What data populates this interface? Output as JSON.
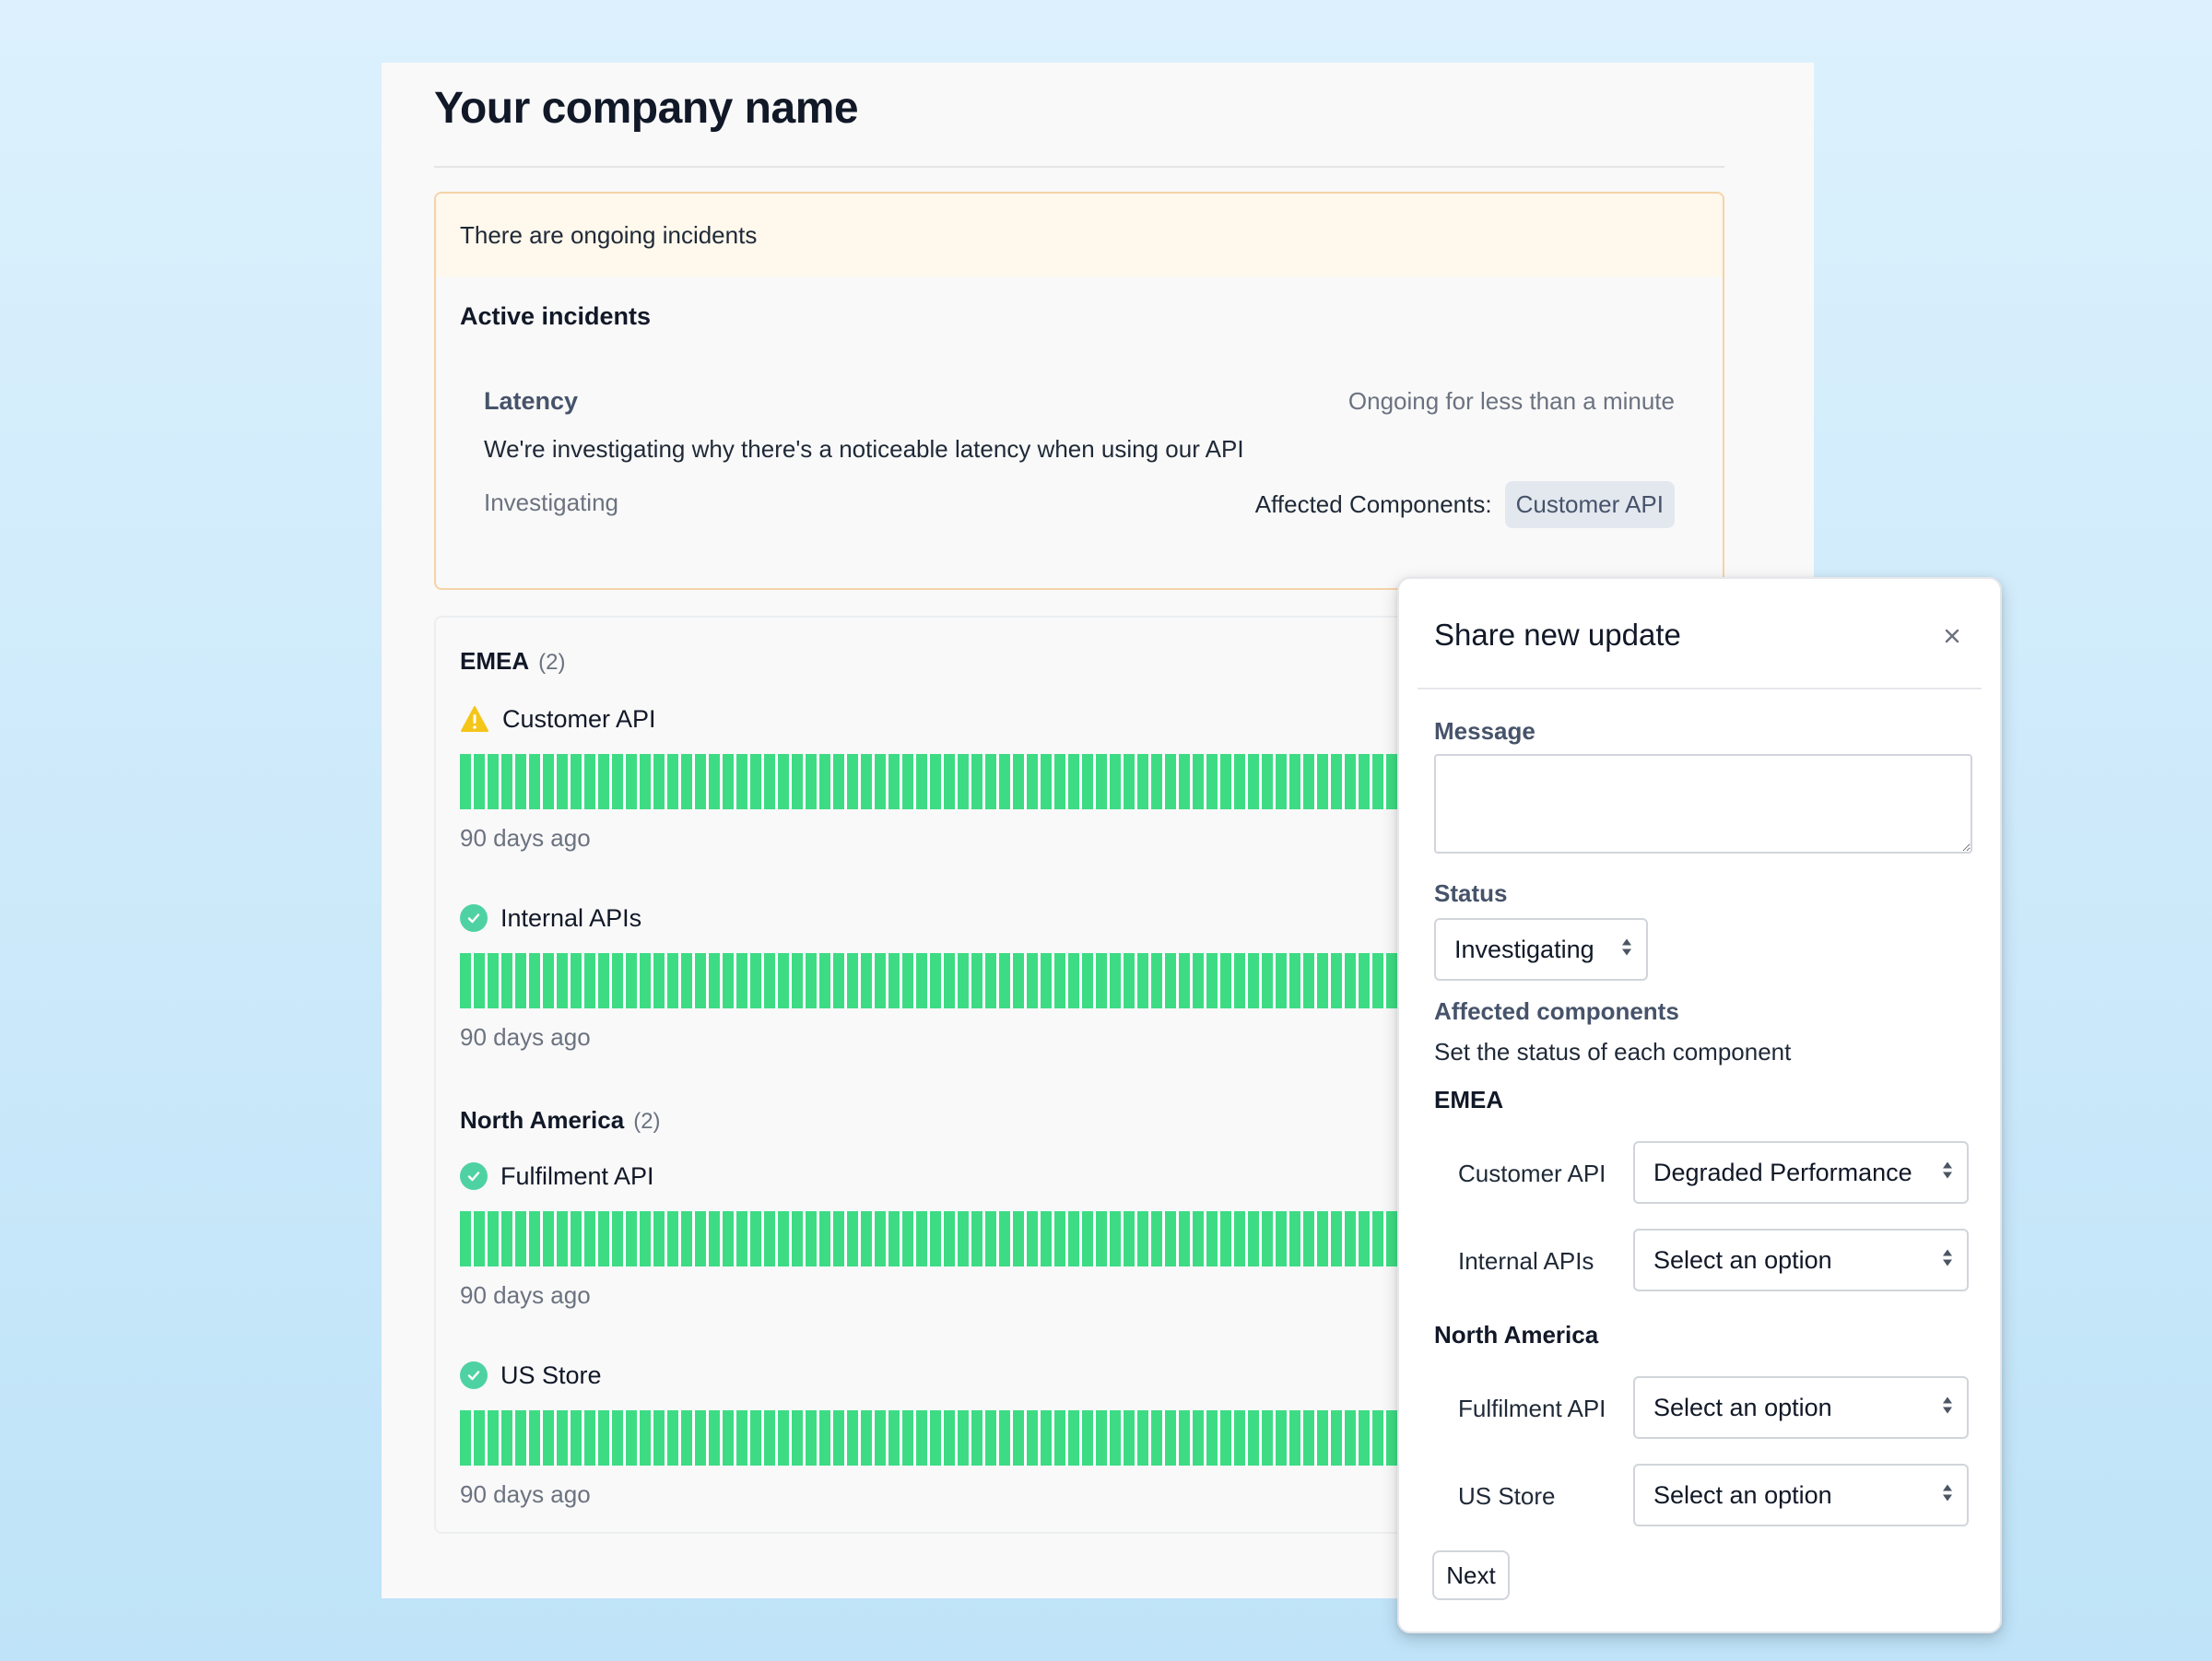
{
  "page": {
    "company_name": "Your company name"
  },
  "incident_banner": {
    "text": "There are ongoing incidents",
    "section_title": "Active incidents",
    "incident": {
      "name": "Latency",
      "duration": "Ongoing for less than a minute",
      "description": "We're investigating why there's a noticeable latency when using our API",
      "status": "Investigating",
      "affected_label": "Affected Components:",
      "affected_components": [
        "Customer API"
      ]
    }
  },
  "groups": [
    {
      "name": "EMEA",
      "count": "(2)",
      "components": [
        {
          "name": "Customer API",
          "status_icon": "warning-icon",
          "history_label": "90 days ago"
        },
        {
          "name": "Internal APIs",
          "status_icon": "check-circle-icon",
          "history_label": "90 days ago"
        }
      ]
    },
    {
      "name": "North America",
      "count": "(2)",
      "components": [
        {
          "name": "Fulfilment API",
          "status_icon": "check-circle-icon",
          "history_label": "90 days ago"
        },
        {
          "name": "US Store",
          "status_icon": "check-circle-icon",
          "history_label": "90 days ago"
        }
      ]
    }
  ],
  "modal": {
    "title": "Share new update",
    "close_icon": "close-icon",
    "message_label": "Message",
    "message_value": "",
    "status_label": "Status",
    "status_value": "Investigating",
    "affected_label": "Affected components",
    "affected_help": "Set the status of each component",
    "regions": [
      {
        "name": "EMEA",
        "components": [
          {
            "name": "Customer API",
            "value": "Degraded Performance"
          },
          {
            "name": "Internal APIs",
            "value": "Select an option"
          }
        ]
      },
      {
        "name": "North America",
        "components": [
          {
            "name": "Fulfilment API",
            "value": "Select an option"
          },
          {
            "name": "US Store",
            "value": "Select an option"
          }
        ]
      }
    ],
    "next_label": "Next"
  },
  "colors": {
    "uptime_green": "#3ddc84",
    "ok_icon": "#4fd2a3",
    "warning_icon": "#f5c518",
    "banner_bg": "#fff8ec",
    "banner_border": "#f5d3a8",
    "chip_bg": "#e3e8ef"
  }
}
